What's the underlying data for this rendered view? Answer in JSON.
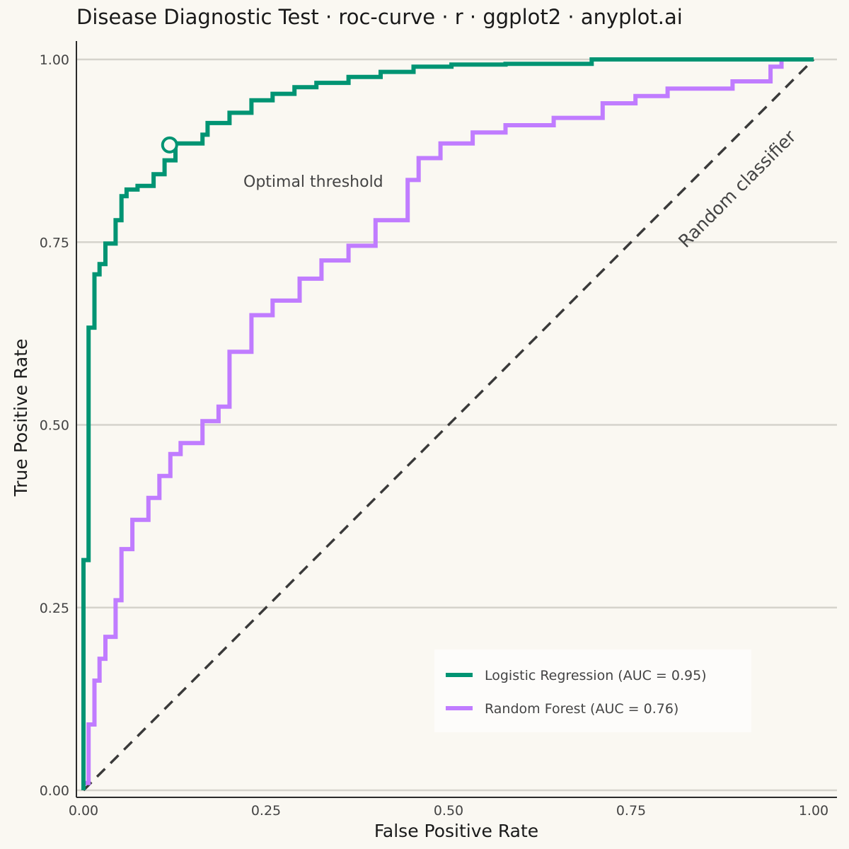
{
  "chart_data": {
    "type": "line",
    "title": "Disease Diagnostic Test · roc-curve · r · ggplot2 · anyplot.ai",
    "xlabel": "False Positive Rate",
    "ylabel": "True Positive Rate",
    "xlim": [
      0,
      1
    ],
    "ylim": [
      0,
      1
    ],
    "xticks": [
      "0.00",
      "0.25",
      "0.50",
      "0.75",
      "1.00"
    ],
    "yticks": [
      "0.00",
      "0.25",
      "0.50",
      "0.75",
      "1.00"
    ],
    "grid": "horizontal",
    "legend_position": "bottom-right",
    "annotations": {
      "diagonal": "Random classifier",
      "optimal": "Optimal threshold"
    },
    "optimal_point": {
      "x": 0.118,
      "y": 0.883,
      "series": "Logistic Regression (AUC = 0.95)"
    },
    "colors": {
      "lr": "#009473",
      "rf": "#C07CFF",
      "diagonal": "#3A3A3A",
      "grid": "#D5D3CC",
      "background": "#FAF8F2"
    },
    "series": [
      {
        "name": "Logistic Regression (AUC = 0.95)",
        "color": "#009473",
        "x": [
          0.0,
          0.0,
          0.007,
          0.007,
          0.015,
          0.015,
          0.022,
          0.022,
          0.03,
          0.03,
          0.044,
          0.044,
          0.052,
          0.052,
          0.059,
          0.059,
          0.074,
          0.074,
          0.096,
          0.096,
          0.111,
          0.111,
          0.126,
          0.126,
          0.163,
          0.163,
          0.17,
          0.17,
          0.2,
          0.2,
          0.23,
          0.23,
          0.259,
          0.259,
          0.289,
          0.289,
          0.319,
          0.319,
          0.363,
          0.363,
          0.407,
          0.407,
          0.452,
          0.452,
          0.504,
          0.504,
          0.578,
          0.578,
          0.696,
          0.696,
          0.956,
          1.0
        ],
        "y": [
          0.0,
          0.315,
          0.315,
          0.633,
          0.633,
          0.706,
          0.706,
          0.72,
          0.72,
          0.748,
          0.748,
          0.78,
          0.78,
          0.813,
          0.813,
          0.822,
          0.822,
          0.827,
          0.827,
          0.843,
          0.843,
          0.862,
          0.862,
          0.885,
          0.885,
          0.897,
          0.897,
          0.913,
          0.913,
          0.927,
          0.927,
          0.944,
          0.944,
          0.953,
          0.953,
          0.962,
          0.962,
          0.968,
          0.968,
          0.976,
          0.976,
          0.983,
          0.983,
          0.99,
          0.99,
          0.993,
          0.993,
          0.994,
          0.994,
          1.0,
          1.0,
          1.0
        ]
      },
      {
        "name": "Random Forest (AUC = 0.76)",
        "color": "#C07CFF",
        "x": [
          0.0,
          0.0,
          0.007,
          0.007,
          0.015,
          0.015,
          0.022,
          0.022,
          0.03,
          0.03,
          0.044,
          0.044,
          0.052,
          0.052,
          0.067,
          0.067,
          0.089,
          0.089,
          0.104,
          0.104,
          0.119,
          0.119,
          0.133,
          0.133,
          0.163,
          0.163,
          0.185,
          0.185,
          0.2,
          0.2,
          0.23,
          0.23,
          0.259,
          0.259,
          0.296,
          0.296,
          0.326,
          0.326,
          0.363,
          0.363,
          0.4,
          0.4,
          0.444,
          0.444,
          0.459,
          0.459,
          0.489,
          0.489,
          0.533,
          0.533,
          0.578,
          0.578,
          0.644,
          0.644,
          0.711,
          0.711,
          0.756,
          0.756,
          0.8,
          0.8,
          0.889,
          0.889,
          0.941,
          0.941,
          0.956,
          0.956,
          1.0
        ],
        "y": [
          0.0,
          0.01,
          0.01,
          0.09,
          0.09,
          0.15,
          0.15,
          0.18,
          0.18,
          0.21,
          0.21,
          0.26,
          0.26,
          0.33,
          0.33,
          0.37,
          0.37,
          0.4,
          0.4,
          0.43,
          0.43,
          0.46,
          0.46,
          0.475,
          0.475,
          0.505,
          0.505,
          0.525,
          0.525,
          0.6,
          0.6,
          0.65,
          0.65,
          0.67,
          0.67,
          0.7,
          0.7,
          0.725,
          0.725,
          0.745,
          0.745,
          0.78,
          0.78,
          0.835,
          0.835,
          0.865,
          0.865,
          0.885,
          0.885,
          0.9,
          0.9,
          0.91,
          0.91,
          0.92,
          0.92,
          0.94,
          0.94,
          0.95,
          0.95,
          0.96,
          0.96,
          0.97,
          0.97,
          0.99,
          0.99,
          1.0,
          1.0
        ]
      }
    ]
  }
}
